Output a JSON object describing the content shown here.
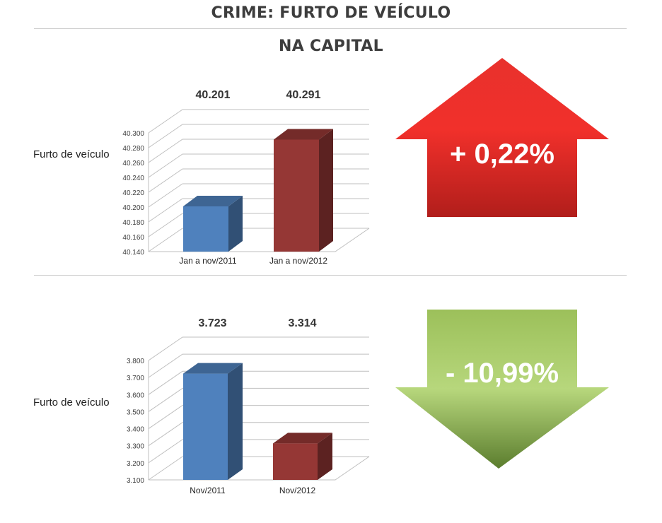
{
  "header": {
    "title": "CRIME: FURTO DE VEÍCULO",
    "subtitle": "NA CAPITAL"
  },
  "colors": {
    "series_2011": "#4f81bd",
    "series_2012": "#953735",
    "arrow_up": "#e02b2b",
    "arrow_down": "#8db84e"
  },
  "chart_data": [
    {
      "type": "bar",
      "ylabel": "Furto de veículo",
      "categories": [
        "Jan a nov/2011",
        "Jan a nov/2012"
      ],
      "values": [
        40201,
        40291
      ],
      "data_labels": [
        "40.201",
        "40.291"
      ],
      "ylim": [
        40140,
        40300
      ],
      "yticks": [
        "40.140",
        "40.160",
        "40.180",
        "40.200",
        "40.220",
        "40.240",
        "40.260",
        "40.280",
        "40.300"
      ],
      "grid": true,
      "change_label": "+ 0,22%",
      "change_direction": "up"
    },
    {
      "type": "bar",
      "ylabel": "Furto de veículo",
      "categories": [
        "Nov/2011",
        "Nov/2012"
      ],
      "values": [
        3723,
        3314
      ],
      "data_labels": [
        "3.723",
        "3.314"
      ],
      "ylim": [
        3100,
        3800
      ],
      "yticks": [
        "3.100",
        "3.200",
        "3.300",
        "3.400",
        "3.500",
        "3.600",
        "3.700",
        "3.800"
      ],
      "grid": true,
      "change_label": "- 10,99%",
      "change_direction": "down"
    }
  ]
}
